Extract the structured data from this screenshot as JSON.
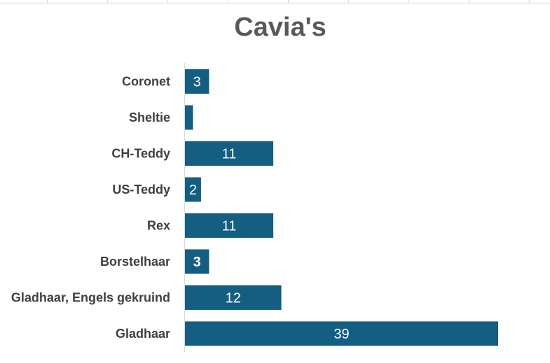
{
  "chart_data": {
    "type": "bar",
    "orientation": "horizontal",
    "title": "Cavia's",
    "categories": [
      "Coronet",
      "Sheltie",
      "CH-Teddy",
      "US-Teddy",
      "Rex",
      "Borstelhaar",
      "Gladhaar, Engels gekruind",
      "Gladhaar"
    ],
    "values": [
      3,
      1,
      11,
      2,
      11,
      3,
      12,
      39
    ],
    "data_labels": [
      "3",
      "",
      "11",
      "2",
      "11",
      "3",
      "12",
      "39"
    ],
    "bold_labels": [
      false,
      false,
      false,
      false,
      false,
      true,
      false,
      false
    ],
    "bar_color": "#145e82",
    "xlim": [
      0,
      40
    ],
    "grid": false,
    "legend": "none"
  }
}
